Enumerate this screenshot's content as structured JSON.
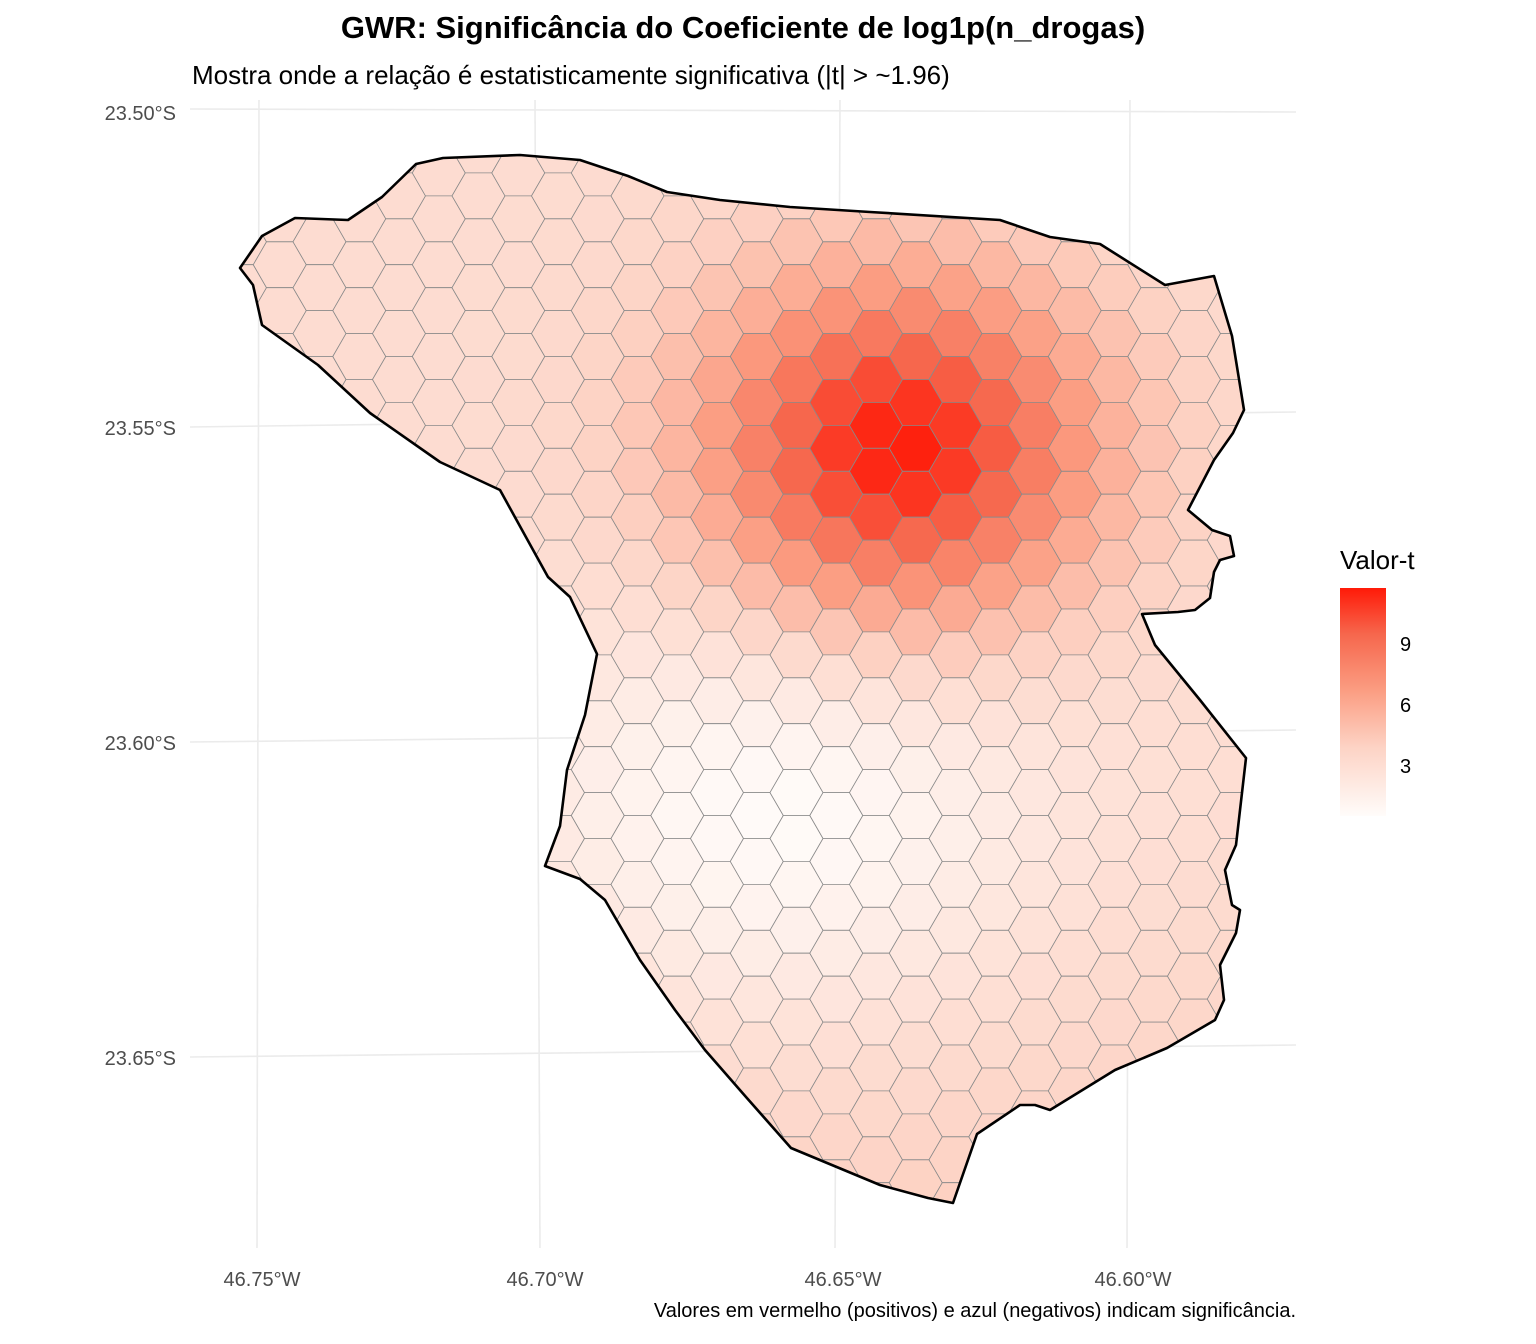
{
  "chart_data": {
    "type": "heatmap",
    "title": "GWR: Significância do Coeficiente de log1p(n_drogas)",
    "subtitle": "Mostra onde a relação é estatisticamente significativa (|t| > ~1.96)",
    "caption": "Valores em vermelho (positivos) e azul (negativos) indicam significância.",
    "legend": {
      "title": "Valor-t",
      "placement": "right",
      "ticks": [
        "3",
        "6",
        "9"
      ],
      "range": [
        0.5,
        11.7
      ],
      "colors": [
        "#fffcfa",
        "#fdd3c5",
        "#fb9d82",
        "#f6664c",
        "#ff1a08"
      ]
    },
    "x_ticks": [
      "46.75°W",
      "46.70°W",
      "46.65°W",
      "46.60°W"
    ],
    "y_ticks": [
      "23.50°S",
      "23.55°S",
      "23.60°S",
      "23.65°S"
    ],
    "xlim": [
      -46.762,
      -46.572
    ],
    "ylim": [
      -23.68,
      -23.499
    ],
    "grid": true,
    "peak": {
      "lon": -46.64,
      "lat": -23.554,
      "t": 11.7
    },
    "low": {
      "lon": -46.66,
      "lat": -23.611,
      "t": 0.5
    }
  }
}
